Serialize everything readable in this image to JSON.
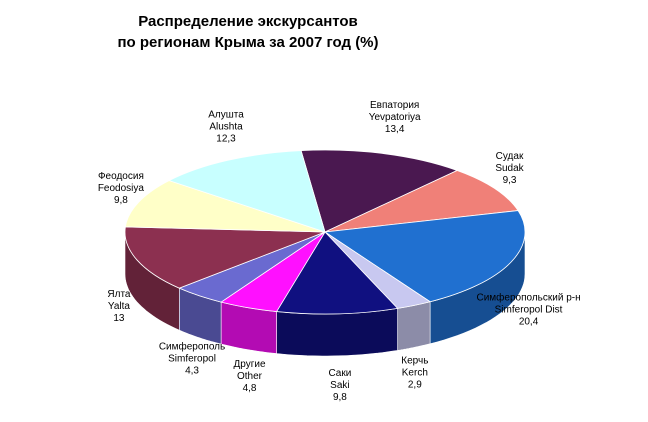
{
  "chart_data": {
    "type": "pie3d",
    "title": "Распределение экскурсантов",
    "subtitle": "по регионам Крыма за 2007 год (%)",
    "categories": [
      "Евпатория",
      "Судак",
      "Симферопольский р-н",
      "Керчь",
      "Саки",
      "Другие",
      "Симферополь",
      "Ялта",
      "Феодосия",
      "Алушта"
    ],
    "categories_en": [
      "Yevpatoriya",
      "Sudak",
      "Simferopol Dist",
      "Kerch",
      "Saki",
      "Other",
      "Simferopol",
      "Yalta",
      "Feodosiya",
      "Alushta"
    ],
    "values": [
      13.4,
      9.3,
      20.4,
      2.9,
      9.8,
      4.8,
      4.3,
      13,
      9.8,
      12.3
    ],
    "value_labels": [
      "13,4",
      "9,3",
      "20,4",
      "2,9",
      "9,8",
      "4,8",
      "4,3",
      "13",
      "9,8",
      "12,3"
    ],
    "colors": [
      "#4a1850",
      "#f08078",
      "#2070d0",
      "#c8c8f0",
      "#101080",
      "#ff10ff",
      "#6a6ad0",
      "#8c3050",
      "#ffffc8",
      "#c8ffff"
    ]
  }
}
